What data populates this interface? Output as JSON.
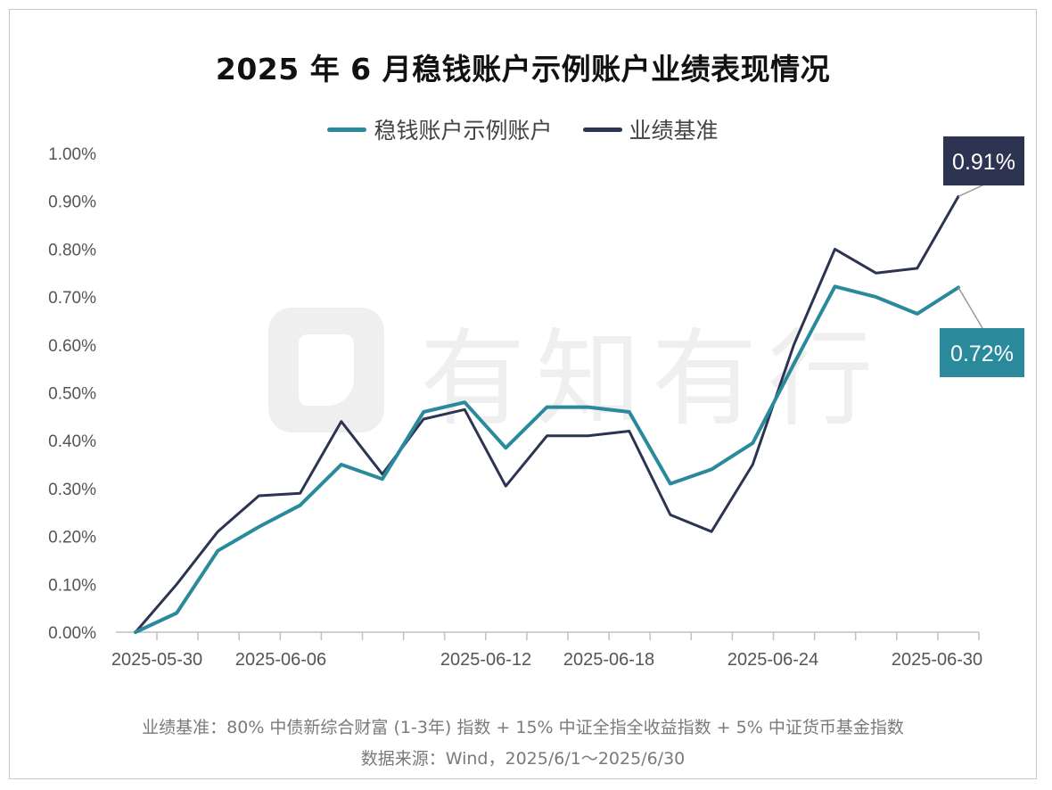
{
  "title": "2025 年 6 月稳钱账户示例账户业绩表现情况",
  "watermark": "有知有行",
  "notes": {
    "benchmark_note": "业绩基准：80% 中债新综合财富 (1-3年) 指数 + 15% 中证全指全收益指数 + 5% 中证货币基金指数",
    "source_note": "数据来源：Wind，2025/6/1～2025/6/30"
  },
  "colors": {
    "account": "#2a8a9c",
    "benchmark": "#2d3452",
    "axis": "#bfbfbf",
    "text": "#555555",
    "connector": "#9a9a9a"
  },
  "chart_data": {
    "type": "line",
    "x_tick_labels": [
      "2025-05-30",
      "2025-06-06",
      "2025-06-12",
      "2025-06-18",
      "2025-06-24",
      "2025-06-30"
    ],
    "ylim": [
      0,
      0.01
    ],
    "y_tick_labels": [
      "0.00%",
      "0.10%",
      "0.20%",
      "0.30%",
      "0.40%",
      "0.50%",
      "0.60%",
      "0.70%",
      "0.80%",
      "0.90%",
      "1.00%"
    ],
    "grid": false,
    "legend_position": "top",
    "series": [
      {
        "name": "稳钱账户示例账户",
        "color": "#2a8a9c",
        "values": [
          0.0,
          0.0004,
          0.0017,
          0.0022,
          0.00265,
          0.0035,
          0.0032,
          0.0046,
          0.0048,
          0.00385,
          0.0047,
          0.0047,
          0.0046,
          0.0031,
          0.0034,
          0.00395,
          0.0056,
          0.00722,
          0.007,
          0.00665,
          0.0072
        ],
        "end_label": "0.72%"
      },
      {
        "name": "业绩基准",
        "color": "#2d3452",
        "values": [
          0.0,
          0.001,
          0.0021,
          0.00285,
          0.0029,
          0.0044,
          0.0033,
          0.00445,
          0.00465,
          0.00305,
          0.0041,
          0.0041,
          0.0042,
          0.00245,
          0.0021,
          0.0035,
          0.006,
          0.008,
          0.0075,
          0.0076,
          0.0091
        ],
        "end_label": "0.91%"
      }
    ]
  }
}
